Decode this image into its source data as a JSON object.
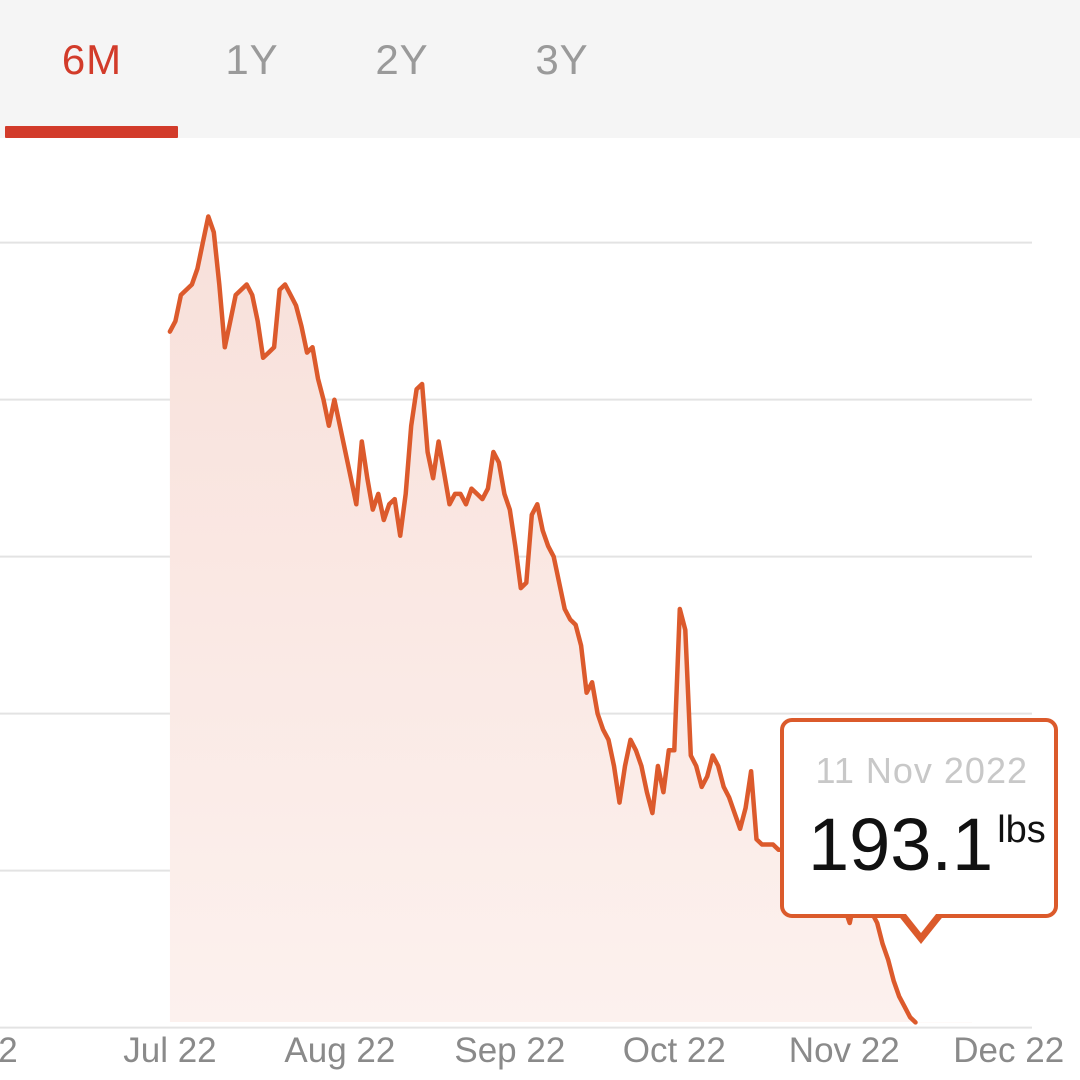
{
  "tabs": [
    {
      "label": "6M",
      "active": true
    },
    {
      "label": "1Y",
      "active": false
    },
    {
      "label": "2Y",
      "active": false
    },
    {
      "label": "3Y",
      "active": false
    }
  ],
  "colors": {
    "accent": "#d23b2a",
    "line": "#dc5a2c",
    "fill": "#f8e2dd",
    "grid": "#e3e3e3",
    "tab_bar_bg": "#f5f5f5"
  },
  "tooltip": {
    "date": "11 Nov 2022",
    "value": "193.1",
    "unit": "lbs"
  },
  "chart_data": {
    "type": "area",
    "title": "",
    "xlabel": "",
    "ylabel": "",
    "grid": true,
    "x_tick_labels": [
      "2",
      "Jul 22",
      "Aug 22",
      "Sep 22",
      "Oct 22",
      "Nov 22",
      "Dec 22"
    ],
    "x_ticks_day": [
      -32,
      0,
      31,
      62,
      92,
      123,
      153
    ],
    "xlim_day": [
      -31,
      166
    ],
    "ylim": [
      192,
      210
    ],
    "y_gridlines": [
      193,
      196,
      199,
      202,
      205,
      208
    ],
    "series": [
      {
        "x_day": [
          0,
          1,
          2,
          4,
          5,
          6,
          7,
          8,
          9,
          10,
          11,
          12,
          13,
          14,
          15,
          16,
          17,
          18,
          19,
          20,
          21,
          22,
          23,
          24,
          25,
          26,
          27,
          28,
          29,
          30,
          31,
          32,
          33,
          34,
          35,
          36,
          37,
          38,
          39,
          40,
          41,
          42,
          43,
          44,
          45,
          46,
          47,
          48,
          49,
          50,
          51,
          52,
          53,
          54,
          55,
          56,
          57,
          58,
          59,
          60,
          61,
          62,
          63,
          64,
          65,
          66,
          67,
          68,
          69,
          70,
          71,
          72,
          73,
          74,
          75,
          76,
          77,
          78,
          79,
          80,
          81,
          82,
          83,
          84,
          85,
          86,
          87,
          88,
          89,
          90,
          91,
          92,
          93,
          94,
          95,
          96,
          97,
          98,
          99,
          100,
          101,
          102,
          103,
          104,
          105,
          106,
          107,
          108,
          109,
          110,
          111,
          112,
          113,
          114,
          115,
          116,
          117,
          118,
          119,
          120,
          121,
          122,
          123,
          124,
          125,
          126,
          127,
          128,
          129,
          130,
          131,
          132,
          133,
          134,
          135,
          136
        ],
        "y": [
          206.3,
          206.5,
          207.0,
          207.2,
          207.5,
          208.0,
          208.5,
          208.2,
          207.2,
          206.0,
          206.5,
          207.0,
          207.1,
          207.2,
          207.0,
          206.5,
          205.8,
          205.9,
          206.0,
          207.1,
          207.2,
          207.0,
          206.8,
          206.4,
          205.9,
          206.0,
          205.4,
          205.0,
          204.5,
          205.0,
          204.5,
          204.0,
          203.5,
          203.0,
          204.2,
          203.5,
          202.9,
          203.2,
          202.7,
          203.0,
          203.1,
          202.4,
          203.2,
          204.5,
          205.2,
          205.3,
          204.0,
          203.5,
          204.2,
          203.6,
          203.0,
          203.2,
          203.2,
          203.0,
          203.3,
          203.2,
          203.1,
          203.3,
          204.0,
          203.8,
          203.2,
          202.9,
          202.2,
          201.4,
          201.5,
          202.8,
          203.0,
          202.5,
          202.2,
          202.0,
          201.5,
          201.0,
          200.8,
          200.7,
          200.3,
          199.4,
          199.6,
          199.0,
          198.7,
          198.5,
          198.0,
          197.3,
          198.0,
          198.5,
          198.3,
          198.0,
          197.5,
          197.1,
          198.0,
          197.5,
          198.3,
          198.3,
          201.0,
          200.6,
          198.2,
          198.0,
          197.6,
          197.8,
          198.2,
          198.0,
          197.6,
          197.4,
          197.1,
          196.8,
          197.2,
          197.9,
          196.6,
          196.5,
          196.5,
          196.5,
          196.4,
          196.4,
          196.1,
          196.0,
          196.2,
          195.6,
          195.7,
          195.8,
          195.8,
          196.0,
          196.0,
          195.5,
          195.3,
          195.0,
          195.5,
          195.5,
          195.8,
          195.2,
          195.0,
          194.6,
          194.3,
          193.9,
          193.6,
          193.4,
          193.2,
          193.1
        ]
      }
    ]
  }
}
